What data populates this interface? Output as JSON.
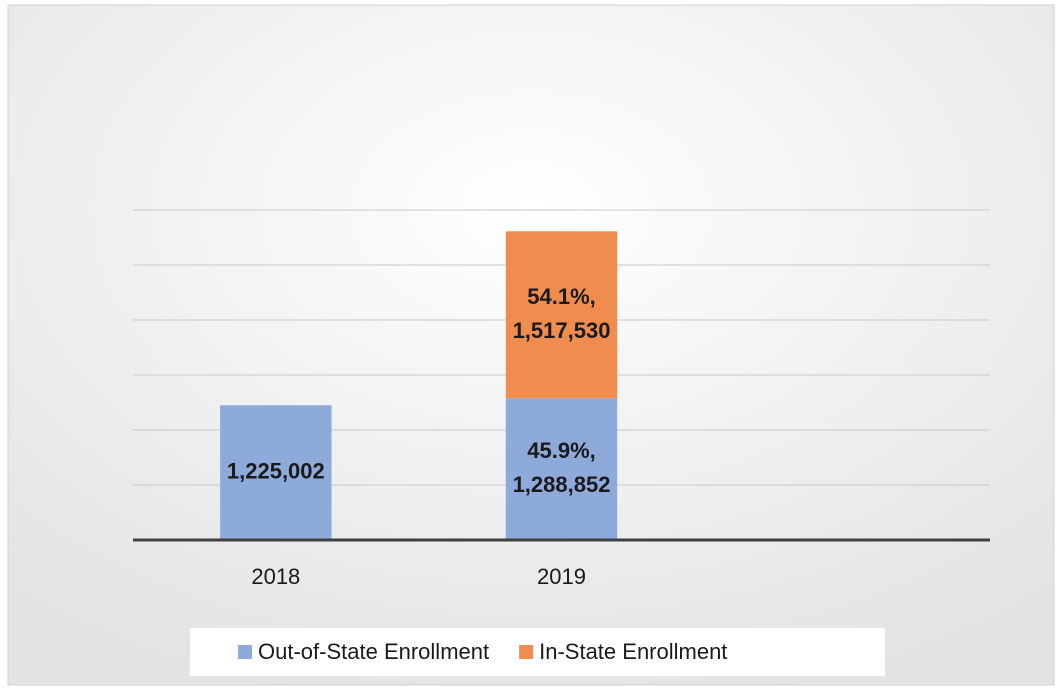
{
  "chart_data": {
    "type": "bar",
    "stacked": true,
    "categories": [
      "2018",
      "2019",
      null
    ],
    "series": [
      {
        "name": "Out-of-State Enrollment",
        "color": "#8eaadb",
        "values": [
          1225002,
          1288852,
          null
        ],
        "value_labels": [
          "1,225,002",
          "45.9%,\n1,288,852",
          null
        ]
      },
      {
        "name": "In-State Enrollment",
        "color": "#f08c4e",
        "values": [
          null,
          1517530,
          null
        ],
        "value_labels": [
          null,
          "54.1%,\n1,517,530",
          null
        ]
      }
    ],
    "ylim": [
      0,
      3000000
    ],
    "yticks": [
      0,
      500000,
      1000000,
      1500000,
      2000000,
      2500000,
      3000000
    ],
    "grid": true,
    "legend": "bottom"
  }
}
